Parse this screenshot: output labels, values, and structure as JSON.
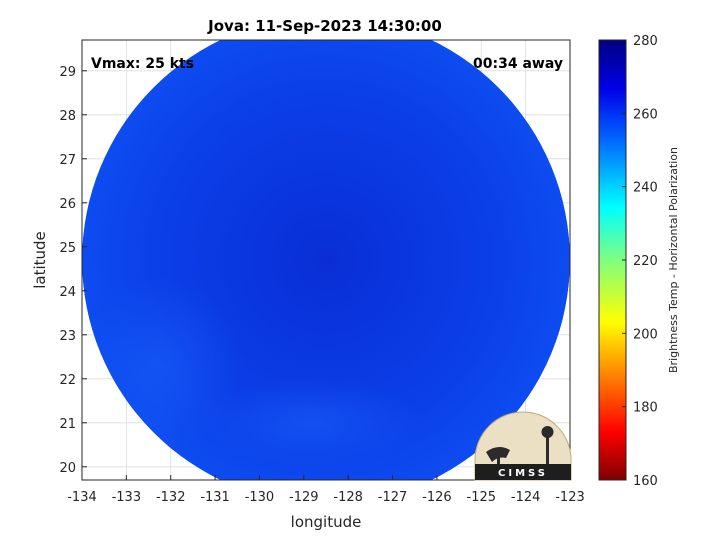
{
  "chart_data": {
    "type": "heatmap",
    "title": "Jova: 11-Sep-2023 14:30:00",
    "xlabel": "longitude",
    "ylabel": "latitude",
    "xlim": [
      -134,
      -123
    ],
    "ylim": [
      19.7,
      29.7
    ],
    "xticks": [
      "-134",
      "-133",
      "-132",
      "-131",
      "-130",
      "-129",
      "-128",
      "-127",
      "-126",
      "-125",
      "-124",
      "-123"
    ],
    "yticks": [
      "20",
      "21",
      "22",
      "23",
      "24",
      "25",
      "26",
      "27",
      "28",
      "29"
    ],
    "grid": true,
    "annotations": {
      "top_left": "Vmax: 25 kts",
      "top_right": "00:34 away"
    },
    "swath": {
      "shape": "circle",
      "center_lon": -128.5,
      "center_lat": 24.7,
      "radius_deg_lon": 5.5,
      "dominant_value": 262,
      "coldest_region": {
        "lon": -127.8,
        "lat": 26.3,
        "value": 270
      },
      "warmest_region": {
        "lon": -124.2,
        "lat": 25.8,
        "value": 250
      }
    },
    "colorbar": {
      "label": "Brightness Temp - Horizontal Polarization",
      "range": [
        160,
        280
      ],
      "ticks": [
        "280",
        "260",
        "240",
        "220",
        "200",
        "180",
        "160"
      ],
      "colormap": "jet",
      "colors": [
        "#7f0000",
        "#ff0000",
        "#ff7f00",
        "#ffff00",
        "#7fff7f",
        "#00ffff",
        "#007fff",
        "#0000ff",
        "#00007f"
      ]
    },
    "logo": {
      "text": "CIMSS"
    }
  }
}
